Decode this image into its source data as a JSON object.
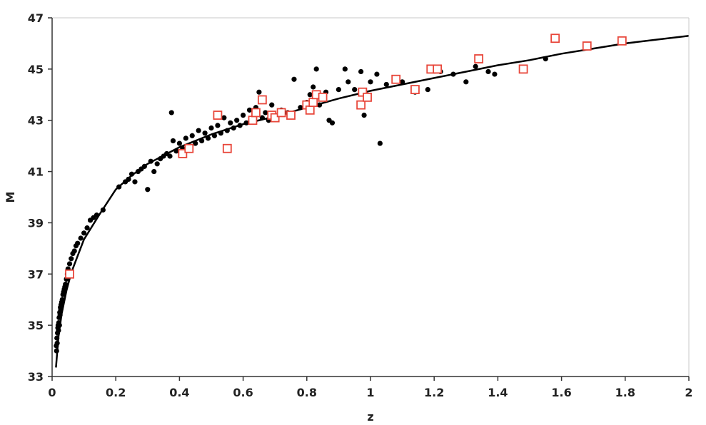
{
  "chart_data": {
    "type": "scatter",
    "title": "",
    "xlabel": "z",
    "ylabel": "M",
    "xlim": [
      0,
      2
    ],
    "ylim": [
      33,
      47
    ],
    "x_ticks": [
      "0",
      "0.2",
      "0.4",
      "0.6",
      "0.8",
      "1",
      "1.2",
      "1.4",
      "1.6",
      "1.8",
      "2"
    ],
    "y_ticks": [
      "33",
      "35",
      "37",
      "39",
      "41",
      "43",
      "45",
      "47"
    ],
    "grid": false,
    "legend": "none",
    "colors": {
      "dots": "#000000",
      "squares": "#e8463a",
      "curve": "#000000"
    },
    "curve": {
      "points": [
        [
          0.012,
          33.35
        ],
        [
          0.02,
          34.55
        ],
        [
          0.03,
          35.45
        ],
        [
          0.045,
          36.35
        ],
        [
          0.06,
          37.05
        ],
        [
          0.08,
          37.7
        ],
        [
          0.1,
          38.35
        ],
        [
          0.15,
          39.35
        ],
        [
          0.2,
          40.3
        ],
        [
          0.25,
          40.85
        ],
        [
          0.3,
          41.3
        ],
        [
          0.4,
          41.95
        ],
        [
          0.5,
          42.45
        ],
        [
          0.6,
          42.85
        ],
        [
          0.7,
          43.15
        ],
        [
          0.8,
          43.5
        ],
        [
          0.9,
          43.85
        ],
        [
          1.0,
          44.15
        ],
        [
          1.1,
          44.4
        ],
        [
          1.2,
          44.65
        ],
        [
          1.3,
          44.9
        ],
        [
          1.4,
          45.15
        ],
        [
          1.5,
          45.35
        ],
        [
          1.6,
          45.6
        ],
        [
          1.7,
          45.8
        ],
        [
          1.8,
          46.0
        ],
        [
          1.9,
          46.15
        ],
        [
          2.0,
          46.3
        ]
      ]
    },
    "series": [
      {
        "marker": "dot",
        "points": [
          [
            0.013,
            34.2
          ],
          [
            0.014,
            34.0
          ],
          [
            0.015,
            34.5
          ],
          [
            0.016,
            34.3
          ],
          [
            0.017,
            34.7
          ],
          [
            0.018,
            34.9
          ],
          [
            0.019,
            35.0
          ],
          [
            0.02,
            34.8
          ],
          [
            0.021,
            35.1
          ],
          [
            0.022,
            35.3
          ],
          [
            0.023,
            35.0
          ],
          [
            0.024,
            35.5
          ],
          [
            0.025,
            35.4
          ],
          [
            0.026,
            35.7
          ],
          [
            0.027,
            35.6
          ],
          [
            0.028,
            35.8
          ],
          [
            0.03,
            35.9
          ],
          [
            0.032,
            36.0
          ],
          [
            0.034,
            36.2
          ],
          [
            0.036,
            36.3
          ],
          [
            0.038,
            36.4
          ],
          [
            0.04,
            36.5
          ],
          [
            0.042,
            36.6
          ],
          [
            0.045,
            36.8
          ],
          [
            0.048,
            37.0
          ],
          [
            0.05,
            37.2
          ],
          [
            0.055,
            37.4
          ],
          [
            0.06,
            37.6
          ],
          [
            0.065,
            37.8
          ],
          [
            0.07,
            37.9
          ],
          [
            0.075,
            38.1
          ],
          [
            0.08,
            38.2
          ],
          [
            0.09,
            38.4
          ],
          [
            0.1,
            38.6
          ],
          [
            0.11,
            38.8
          ],
          [
            0.12,
            39.1
          ],
          [
            0.13,
            39.2
          ],
          [
            0.14,
            39.3
          ],
          [
            0.16,
            39.5
          ],
          [
            0.21,
            40.4
          ],
          [
            0.23,
            40.6
          ],
          [
            0.24,
            40.7
          ],
          [
            0.25,
            40.9
          ],
          [
            0.26,
            40.6
          ],
          [
            0.27,
            41.0
          ],
          [
            0.28,
            41.1
          ],
          [
            0.29,
            41.2
          ],
          [
            0.3,
            40.3
          ],
          [
            0.31,
            41.4
          ],
          [
            0.32,
            41.0
          ],
          [
            0.33,
            41.3
          ],
          [
            0.34,
            41.5
          ],
          [
            0.35,
            41.6
          ],
          [
            0.36,
            41.7
          ],
          [
            0.37,
            41.6
          ],
          [
            0.375,
            43.3
          ],
          [
            0.38,
            42.2
          ],
          [
            0.39,
            41.8
          ],
          [
            0.4,
            42.1
          ],
          [
            0.41,
            41.9
          ],
          [
            0.42,
            42.3
          ],
          [
            0.43,
            42.0
          ],
          [
            0.44,
            42.4
          ],
          [
            0.45,
            42.1
          ],
          [
            0.46,
            42.6
          ],
          [
            0.47,
            42.2
          ],
          [
            0.48,
            42.5
          ],
          [
            0.49,
            42.3
          ],
          [
            0.5,
            42.7
          ],
          [
            0.51,
            42.4
          ],
          [
            0.52,
            42.8
          ],
          [
            0.53,
            42.5
          ],
          [
            0.54,
            43.1
          ],
          [
            0.55,
            42.6
          ],
          [
            0.56,
            42.9
          ],
          [
            0.57,
            42.7
          ],
          [
            0.58,
            43.0
          ],
          [
            0.59,
            42.8
          ],
          [
            0.6,
            43.2
          ],
          [
            0.61,
            42.9
          ],
          [
            0.62,
            43.4
          ],
          [
            0.63,
            43.0
          ],
          [
            0.64,
            43.5
          ],
          [
            0.65,
            44.1
          ],
          [
            0.66,
            43.1
          ],
          [
            0.67,
            43.3
          ],
          [
            0.68,
            43.0
          ],
          [
            0.69,
            43.6
          ],
          [
            0.7,
            43.2
          ],
          [
            0.72,
            43.4
          ],
          [
            0.74,
            43.3
          ],
          [
            0.76,
            44.6
          ],
          [
            0.78,
            43.5
          ],
          [
            0.8,
            43.7
          ],
          [
            0.81,
            44.0
          ],
          [
            0.82,
            44.3
          ],
          [
            0.83,
            45.0
          ],
          [
            0.84,
            43.6
          ],
          [
            0.86,
            44.1
          ],
          [
            0.87,
            43.0
          ],
          [
            0.88,
            42.9
          ],
          [
            0.9,
            44.2
          ],
          [
            0.92,
            45.0
          ],
          [
            0.93,
            44.5
          ],
          [
            0.95,
            44.2
          ],
          [
            0.97,
            44.9
          ],
          [
            0.98,
            43.2
          ],
          [
            1.0,
            44.5
          ],
          [
            1.02,
            44.8
          ],
          [
            1.03,
            42.1
          ],
          [
            1.05,
            44.4
          ],
          [
            1.1,
            44.5
          ],
          [
            1.14,
            44.1
          ],
          [
            1.18,
            44.2
          ],
          [
            1.22,
            44.9
          ],
          [
            1.26,
            44.8
          ],
          [
            1.3,
            44.5
          ],
          [
            1.33,
            45.1
          ],
          [
            1.37,
            44.9
          ],
          [
            1.39,
            44.8
          ],
          [
            1.55,
            45.4
          ]
        ]
      },
      {
        "marker": "square",
        "points": [
          [
            0.055,
            37.0
          ],
          [
            0.41,
            41.7
          ],
          [
            0.43,
            41.9
          ],
          [
            0.52,
            43.2
          ],
          [
            0.55,
            41.9
          ],
          [
            0.63,
            43.0
          ],
          [
            0.64,
            43.3
          ],
          [
            0.66,
            43.8
          ],
          [
            0.69,
            43.2
          ],
          [
            0.7,
            43.1
          ],
          [
            0.72,
            43.3
          ],
          [
            0.75,
            43.2
          ],
          [
            0.8,
            43.6
          ],
          [
            0.81,
            43.4
          ],
          [
            0.82,
            43.7
          ],
          [
            0.83,
            44.0
          ],
          [
            0.85,
            43.9
          ],
          [
            0.97,
            43.6
          ],
          [
            0.975,
            44.1
          ],
          [
            0.99,
            43.9
          ],
          [
            1.08,
            44.6
          ],
          [
            1.14,
            44.2
          ],
          [
            1.19,
            45.0
          ],
          [
            1.21,
            45.0
          ],
          [
            1.34,
            45.4
          ],
          [
            1.48,
            45.0
          ],
          [
            1.58,
            46.2
          ],
          [
            1.68,
            45.9
          ],
          [
            1.79,
            46.1
          ]
        ]
      }
    ]
  }
}
